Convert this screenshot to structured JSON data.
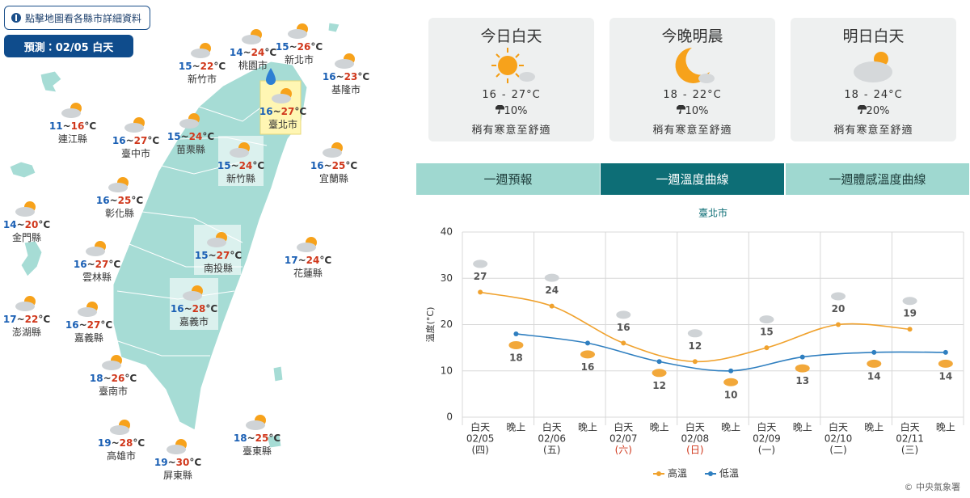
{
  "map": {
    "notice": "點擊地圖看各縣市詳細資料",
    "forecast": "預測：02/05 白天",
    "temp_separator": "~",
    "temp_unit": "°C",
    "counties": [
      {
        "name": "新竹市",
        "low": 15,
        "high": 22
      },
      {
        "name": "桃園市",
        "low": 14,
        "high": 24
      },
      {
        "name": "新北市",
        "low": 15,
        "high": 26
      },
      {
        "name": "基隆市",
        "low": 16,
        "high": 23
      },
      {
        "name": "連江縣",
        "low": 11,
        "high": 16
      },
      {
        "name": "臺中市",
        "low": 16,
        "high": 27
      },
      {
        "name": "苗栗縣",
        "low": 15,
        "high": 24
      },
      {
        "name": "臺北市",
        "low": 16,
        "high": 27
      },
      {
        "name": "新竹縣",
        "low": 15,
        "high": 24
      },
      {
        "name": "宜蘭縣",
        "low": 16,
        "high": 25
      },
      {
        "name": "彰化縣",
        "low": 16,
        "high": 25
      },
      {
        "name": "金門縣",
        "low": 14,
        "high": 20
      },
      {
        "name": "花蓮縣",
        "low": 17,
        "high": 24
      },
      {
        "name": "雲林縣",
        "low": 16,
        "high": 27
      },
      {
        "name": "南投縣",
        "low": 15,
        "high": 27
      },
      {
        "name": "澎湖縣",
        "low": 17,
        "high": 22
      },
      {
        "name": "嘉義縣",
        "low": 16,
        "high": 27
      },
      {
        "name": "嘉義市",
        "low": 16,
        "high": 28
      },
      {
        "name": "臺南市",
        "low": 18,
        "high": 26
      },
      {
        "name": "臺東縣",
        "low": 18,
        "high": 25
      },
      {
        "name": "高雄市",
        "low": 19,
        "high": 28
      },
      {
        "name": "屏東縣",
        "low": 19,
        "high": 30
      }
    ]
  },
  "cards": {
    "range_separator": "-",
    "temp_unit": "°C",
    "items": [
      {
        "title": "今日白天",
        "low": 16,
        "high": 27,
        "rain": "10%",
        "desc": "稍有寒意至舒適"
      },
      {
        "title": "今晚明晨",
        "low": 18,
        "high": 22,
        "rain": "10%",
        "desc": "稍有寒意至舒適"
      },
      {
        "title": "明日白天",
        "low": 18,
        "high": 24,
        "rain": "20%",
        "desc": "稍有寒意至舒適"
      }
    ]
  },
  "tabs": [
    "一週預報",
    "一週溫度曲線",
    "一週體感溫度曲線"
  ],
  "chart_data": {
    "type": "line",
    "title": "臺北市",
    "y_label": "溫度(°C)",
    "categories": [
      "白天",
      "晚上",
      "白天",
      "晚上",
      "白天",
      "晚上",
      "白天",
      "晚上",
      "白天",
      "晚上",
      "白天",
      "晚上",
      "白天",
      "晚上"
    ],
    "dates": [
      "02/05",
      "02/06",
      "02/07",
      "02/08",
      "02/09",
      "02/10",
      "02/11"
    ],
    "weekdays": [
      "(四)",
      "(五)",
      "(六)",
      "(日)",
      "(一)",
      "(二)",
      "(三)"
    ],
    "ylim": [
      0,
      40
    ],
    "yticks": [
      0,
      10,
      20,
      30,
      40
    ],
    "grid": true,
    "series": [
      {
        "name": "高溫",
        "color": "#f0a22e",
        "x": [
          0,
          2,
          4,
          6,
          8,
          10,
          12
        ],
        "values": [
          27,
          24,
          16,
          12,
          15,
          20,
          19
        ]
      },
      {
        "name": "低溫",
        "color": "#2f7fc0",
        "x": [
          1,
          3,
          5,
          7,
          9,
          11,
          13
        ],
        "values": [
          18,
          16,
          12,
          10,
          13,
          14,
          14
        ]
      }
    ]
  },
  "copyright": "© 中央氣象署"
}
